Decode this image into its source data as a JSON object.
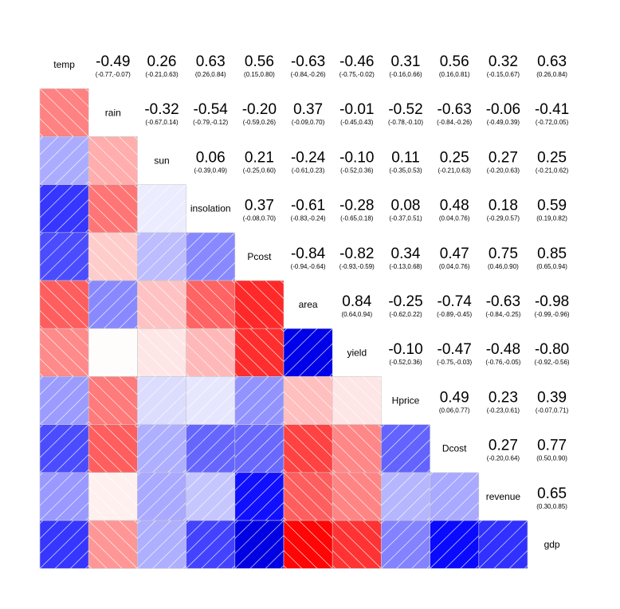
{
  "chart_data": {
    "type": "heatmap",
    "subtype": "corrgram",
    "title": "",
    "variables": [
      "temp",
      "rain",
      "sun",
      "insolation",
      "Pcost",
      "area",
      "yield",
      "Hprice",
      "Dcost",
      "revenue",
      "gdp"
    ],
    "correlations": [
      [
        1,
        -0.49,
        0.26,
        0.63,
        0.56,
        -0.63,
        -0.46,
        0.31,
        0.56,
        0.32,
        0.63
      ],
      [
        -0.49,
        1,
        -0.32,
        -0.54,
        -0.2,
        0.37,
        -0.01,
        -0.52,
        -0.63,
        -0.06,
        -0.41
      ],
      [
        0.26,
        -0.32,
        1,
        0.06,
        0.21,
        -0.24,
        -0.1,
        0.11,
        0.25,
        0.27,
        0.25
      ],
      [
        0.63,
        -0.54,
        0.06,
        1,
        0.37,
        -0.61,
        -0.28,
        0.08,
        0.48,
        0.18,
        0.59
      ],
      [
        0.56,
        -0.2,
        0.21,
        0.37,
        1,
        -0.84,
        -0.82,
        0.34,
        0.47,
        0.75,
        0.85
      ],
      [
        -0.63,
        0.37,
        -0.24,
        -0.61,
        -0.84,
        1,
        0.84,
        -0.25,
        -0.74,
        -0.63,
        -0.98
      ],
      [
        -0.46,
        -0.01,
        -0.1,
        -0.28,
        -0.82,
        0.84,
        1,
        -0.1,
        -0.47,
        -0.48,
        -0.8
      ],
      [
        0.31,
        -0.52,
        0.11,
        0.08,
        0.34,
        -0.25,
        -0.1,
        1,
        0.49,
        0.23,
        0.39
      ],
      [
        0.56,
        -0.63,
        0.25,
        0.48,
        0.47,
        -0.74,
        -0.47,
        0.49,
        1,
        0.27,
        0.77
      ],
      [
        0.32,
        -0.06,
        0.27,
        0.18,
        0.75,
        -0.63,
        -0.48,
        0.23,
        0.27,
        1,
        0.65
      ],
      [
        0.63,
        -0.41,
        0.25,
        0.59,
        0.85,
        -0.98,
        -0.8,
        0.39,
        0.77,
        0.65,
        1
      ]
    ],
    "upper_panel": [
      {
        "row": "temp",
        "col": "rain",
        "value": "-0.49",
        "ci": "(-0.77,-0.07)"
      },
      {
        "row": "temp",
        "col": "sun",
        "value": "0.26",
        "ci": "(-0.21,0.63)"
      },
      {
        "row": "temp",
        "col": "insolation",
        "value": "0.63",
        "ci": "(0.26,0.84)"
      },
      {
        "row": "temp",
        "col": "Pcost",
        "value": "0.56",
        "ci": "(0.15,0.80)"
      },
      {
        "row": "temp",
        "col": "area",
        "value": "-0.63",
        "ci": "(-0.84,-0.26)"
      },
      {
        "row": "temp",
        "col": "yield",
        "value": "-0.46",
        "ci": "(-0.75,-0.02)"
      },
      {
        "row": "temp",
        "col": "Hprice",
        "value": "0.31",
        "ci": "(-0.16,0.66)"
      },
      {
        "row": "temp",
        "col": "Dcost",
        "value": "0.56",
        "ci": "(0.16,0.81)"
      },
      {
        "row": "temp",
        "col": "revenue",
        "value": "0.32",
        "ci": "(-0.15,0.67)"
      },
      {
        "row": "temp",
        "col": "gdp",
        "value": "0.63",
        "ci": "(0.26,0.84)"
      },
      {
        "row": "rain",
        "col": "sun",
        "value": "-0.32",
        "ci": "(-0.67,0.14)"
      },
      {
        "row": "rain",
        "col": "insolation",
        "value": "-0.54",
        "ci": "(-0.79,-0.12)"
      },
      {
        "row": "rain",
        "col": "Pcost",
        "value": "-0.20",
        "ci": "(-0.59,0.26)"
      },
      {
        "row": "rain",
        "col": "area",
        "value": "0.37",
        "ci": "(-0.09,0.70)"
      },
      {
        "row": "rain",
        "col": "yield",
        "value": "-0.01",
        "ci": "(-0.45,0.43)"
      },
      {
        "row": "rain",
        "col": "Hprice",
        "value": "-0.52",
        "ci": "(-0.78,-0.10)"
      },
      {
        "row": "rain",
        "col": "Dcost",
        "value": "-0.63",
        "ci": "(-0.84,-0.26)"
      },
      {
        "row": "rain",
        "col": "revenue",
        "value": "-0.06",
        "ci": "(-0.49,0.39)"
      },
      {
        "row": "rain",
        "col": "gdp",
        "value": "-0.41",
        "ci": "(-0.72,0.05)"
      },
      {
        "row": "sun",
        "col": "insolation",
        "value": "0.06",
        "ci": "(-0.39,0.49)"
      },
      {
        "row": "sun",
        "col": "Pcost",
        "value": "0.21",
        "ci": "(-0.25,0.60)"
      },
      {
        "row": "sun",
        "col": "area",
        "value": "-0.24",
        "ci": "(-0.61,0.23)"
      },
      {
        "row": "sun",
        "col": "yield",
        "value": "-0.10",
        "ci": "(-0.52,0.36)"
      },
      {
        "row": "sun",
        "col": "Hprice",
        "value": "0.11",
        "ci": "(-0.35,0.53)"
      },
      {
        "row": "sun",
        "col": "Dcost",
        "value": "0.25",
        "ci": "(-0.21,0.63)"
      },
      {
        "row": "sun",
        "col": "revenue",
        "value": "0.27",
        "ci": "(-0.20,0.63)"
      },
      {
        "row": "sun",
        "col": "gdp",
        "value": "0.25",
        "ci": "(-0.21,0.62)"
      },
      {
        "row": "insolation",
        "col": "Pcost",
        "value": "0.37",
        "ci": "(-0.08,0.70)"
      },
      {
        "row": "insolation",
        "col": "area",
        "value": "-0.61",
        "ci": "(-0.83,-0.24)"
      },
      {
        "row": "insolation",
        "col": "yield",
        "value": "-0.28",
        "ci": "(-0.65,0.18)"
      },
      {
        "row": "insolation",
        "col": "Hprice",
        "value": "0.08",
        "ci": "(-0.37,0.51)"
      },
      {
        "row": "insolation",
        "col": "Dcost",
        "value": "0.48",
        "ci": "(0.04,0.76)"
      },
      {
        "row": "insolation",
        "col": "revenue",
        "value": "0.18",
        "ci": "(-0.29,0.57)"
      },
      {
        "row": "insolation",
        "col": "gdp",
        "value": "0.59",
        "ci": "(0.19,0.82)"
      },
      {
        "row": "Pcost",
        "col": "area",
        "value": "-0.84",
        "ci": "(-0.94,-0.64)"
      },
      {
        "row": "Pcost",
        "col": "yield",
        "value": "-0.82",
        "ci": "(-0.93,-0.59)"
      },
      {
        "row": "Pcost",
        "col": "Hprice",
        "value": "0.34",
        "ci": "(-0.13,0.68)"
      },
      {
        "row": "Pcost",
        "col": "Dcost",
        "value": "0.47",
        "ci": "(0.04,0.76)"
      },
      {
        "row": "Pcost",
        "col": "revenue",
        "value": "0.75",
        "ci": "(0.46,0.90)"
      },
      {
        "row": "Pcost",
        "col": "gdp",
        "value": "0.85",
        "ci": "(0.65,0.94)"
      },
      {
        "row": "area",
        "col": "yield",
        "value": "0.84",
        "ci": "(0.64,0.94)"
      },
      {
        "row": "area",
        "col": "Hprice",
        "value": "-0.25",
        "ci": "(-0.62,0.22)"
      },
      {
        "row": "area",
        "col": "Dcost",
        "value": "-0.74",
        "ci": "(-0.89,-0.45)"
      },
      {
        "row": "area",
        "col": "revenue",
        "value": "-0.63",
        "ci": "(-0.84,-0.25)"
      },
      {
        "row": "area",
        "col": "gdp",
        "value": "-0.98",
        "ci": "(-0.99,-0.96)"
      },
      {
        "row": "yield",
        "col": "Hprice",
        "value": "-0.10",
        "ci": "(-0.52,0.36)"
      },
      {
        "row": "yield",
        "col": "Dcost",
        "value": "-0.47",
        "ci": "(-0.75,-0.03)"
      },
      {
        "row": "yield",
        "col": "revenue",
        "value": "-0.48",
        "ci": "(-0.76,-0.05)"
      },
      {
        "row": "yield",
        "col": "gdp",
        "value": "-0.80",
        "ci": "(-0.92,-0.56)"
      },
      {
        "row": "Hprice",
        "col": "Dcost",
        "value": "0.49",
        "ci": "(0.06,0.77)"
      },
      {
        "row": "Hprice",
        "col": "revenue",
        "value": "0.23",
        "ci": "(-0.23,0.61)"
      },
      {
        "row": "Hprice",
        "col": "gdp",
        "value": "0.39",
        "ci": "(-0.07,0.71)"
      },
      {
        "row": "Dcost",
        "col": "revenue",
        "value": "0.27",
        "ci": "(-0.20,0.64)"
      },
      {
        "row": "Dcost",
        "col": "gdp",
        "value": "0.77",
        "ci": "(0.50,0.90)"
      },
      {
        "row": "revenue",
        "col": "gdp",
        "value": "0.65",
        "ci": "(0.30,0.85)"
      }
    ],
    "lower_panel": "shade",
    "upper_panel_style": "correlation value with confidence interval",
    "diagonal": "variable names",
    "color_scale": {
      "negative": "#ff0000",
      "zero": "#ffffff",
      "positive": "#0000ff",
      "strong_positive": "#00008b"
    },
    "hatch_lines": {
      "positive_direction": "bottom-left to top-right",
      "negative_direction": "top-left to bottom-right"
    },
    "grid": false
  }
}
